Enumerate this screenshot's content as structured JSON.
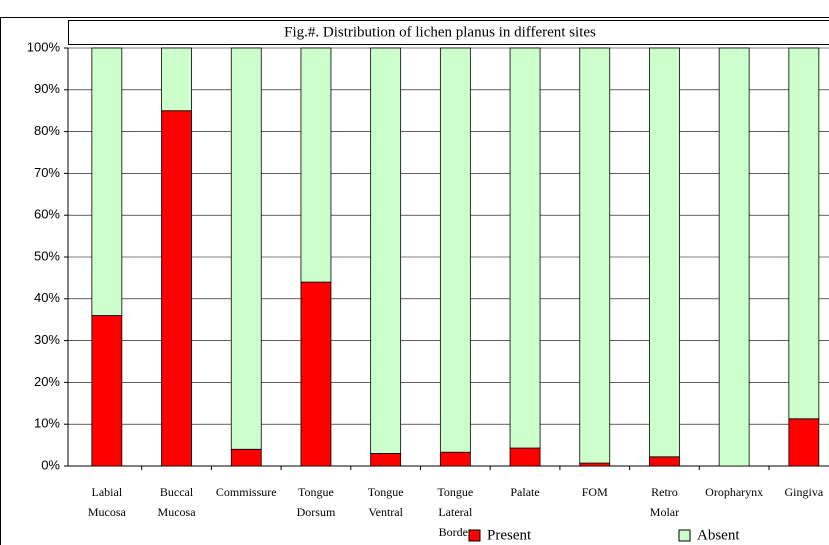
{
  "chart_data": {
    "type": "stacked_bar",
    "title": "Fig.#. Distribution of lichen planus in different sites",
    "categories": [
      "Labial Mucosa",
      "Buccal Mucosa",
      "Commissure",
      "Tongue Dorsum",
      "Tongue Ventral",
      "Tongue Lateral Border",
      "Palate",
      "FOM",
      "Retro Molar",
      "Oropharynx",
      "Gingiva"
    ],
    "series": [
      {
        "name": "Present",
        "color": "#ff0000",
        "values": [
          36,
          85,
          4,
          44,
          3,
          3.3,
          4.3,
          0.7,
          2.2,
          0,
          11.3
        ]
      },
      {
        "name": "Absent",
        "color": "#ccffcc",
        "values": [
          64,
          15,
          96,
          56,
          97,
          96.7,
          95.7,
          99.3,
          97.8,
          100,
          88.7
        ]
      }
    ],
    "ylim": [
      0,
      100
    ],
    "yticks": [
      {
        "value": 0,
        "label": "0%"
      },
      {
        "value": 10,
        "label": "10%"
      },
      {
        "value": 20,
        "label": "20%"
      },
      {
        "value": 30,
        "label": "30%"
      },
      {
        "value": 40,
        "label": "40%"
      },
      {
        "value": 50,
        "label": "50%"
      },
      {
        "value": 60,
        "label": "60%"
      },
      {
        "value": 70,
        "label": "70%"
      },
      {
        "value": 80,
        "label": "80%"
      },
      {
        "value": 90,
        "label": "90%"
      },
      {
        "value": 100,
        "label": "100%"
      }
    ],
    "grid": true,
    "legend": "bottom"
  }
}
